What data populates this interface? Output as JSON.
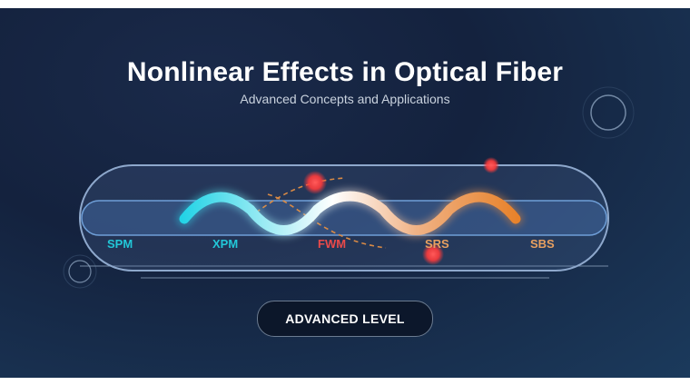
{
  "title": "Nonlinear Effects in Optical Fiber",
  "subtitle": "Advanced Concepts and Applications",
  "effects": [
    {
      "label": "SPM",
      "color": "#22c7d8"
    },
    {
      "label": "XPM",
      "color": "#22c7d8"
    },
    {
      "label": "FWM",
      "color": "#e94a4a"
    },
    {
      "label": "SRS",
      "color": "#e8a060"
    },
    {
      "label": "SBS",
      "color": "#e8a060"
    }
  ],
  "badge_label": "ADVANCED LEVEL",
  "colors": {
    "background": "#14223e",
    "wave_start": "#22d3e6",
    "wave_mid": "#ffffff",
    "wave_end": "#e8822a",
    "particle": "#ff3b3b"
  }
}
